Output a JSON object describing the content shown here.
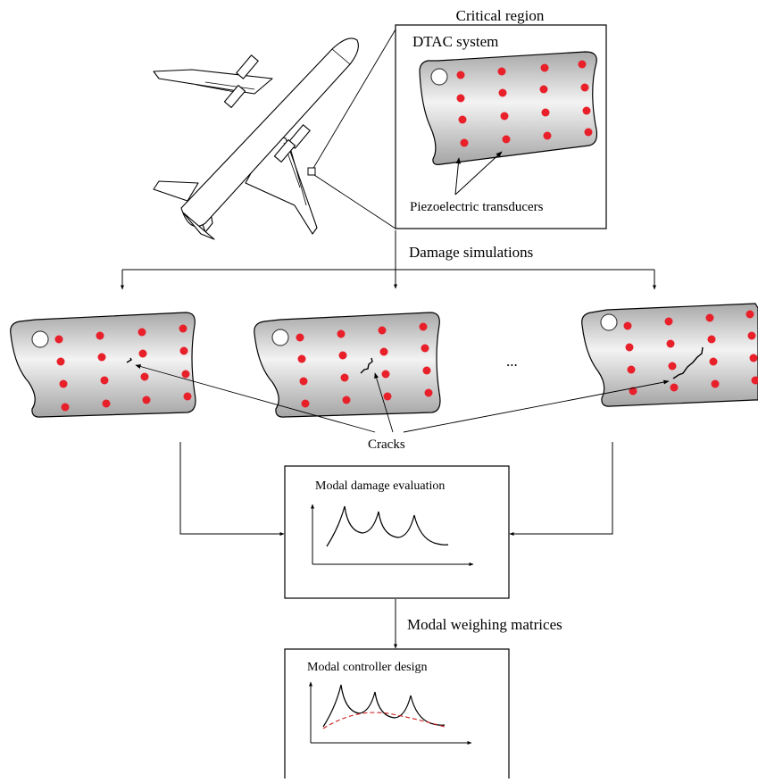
{
  "inset": {
    "title": "Critical region",
    "system_label": "DTAC system",
    "transducer_label": "Piezoelectric transducers"
  },
  "flow": {
    "damage_simulations": "Damage simulations",
    "ellipsis": "...",
    "cracks_label": "Cracks",
    "modal_weighing": "Modal weighing matrices"
  },
  "boxes": {
    "evaluation_title": "Modal damage evaluation",
    "controller_title": "Modal controller design"
  },
  "colors": {
    "transducer": "#e8202a",
    "panel_light": "#f2f2f2",
    "panel_dark": "#a9a9a9",
    "stroke": "#000000",
    "controller_curve": "#cc1f1f"
  }
}
